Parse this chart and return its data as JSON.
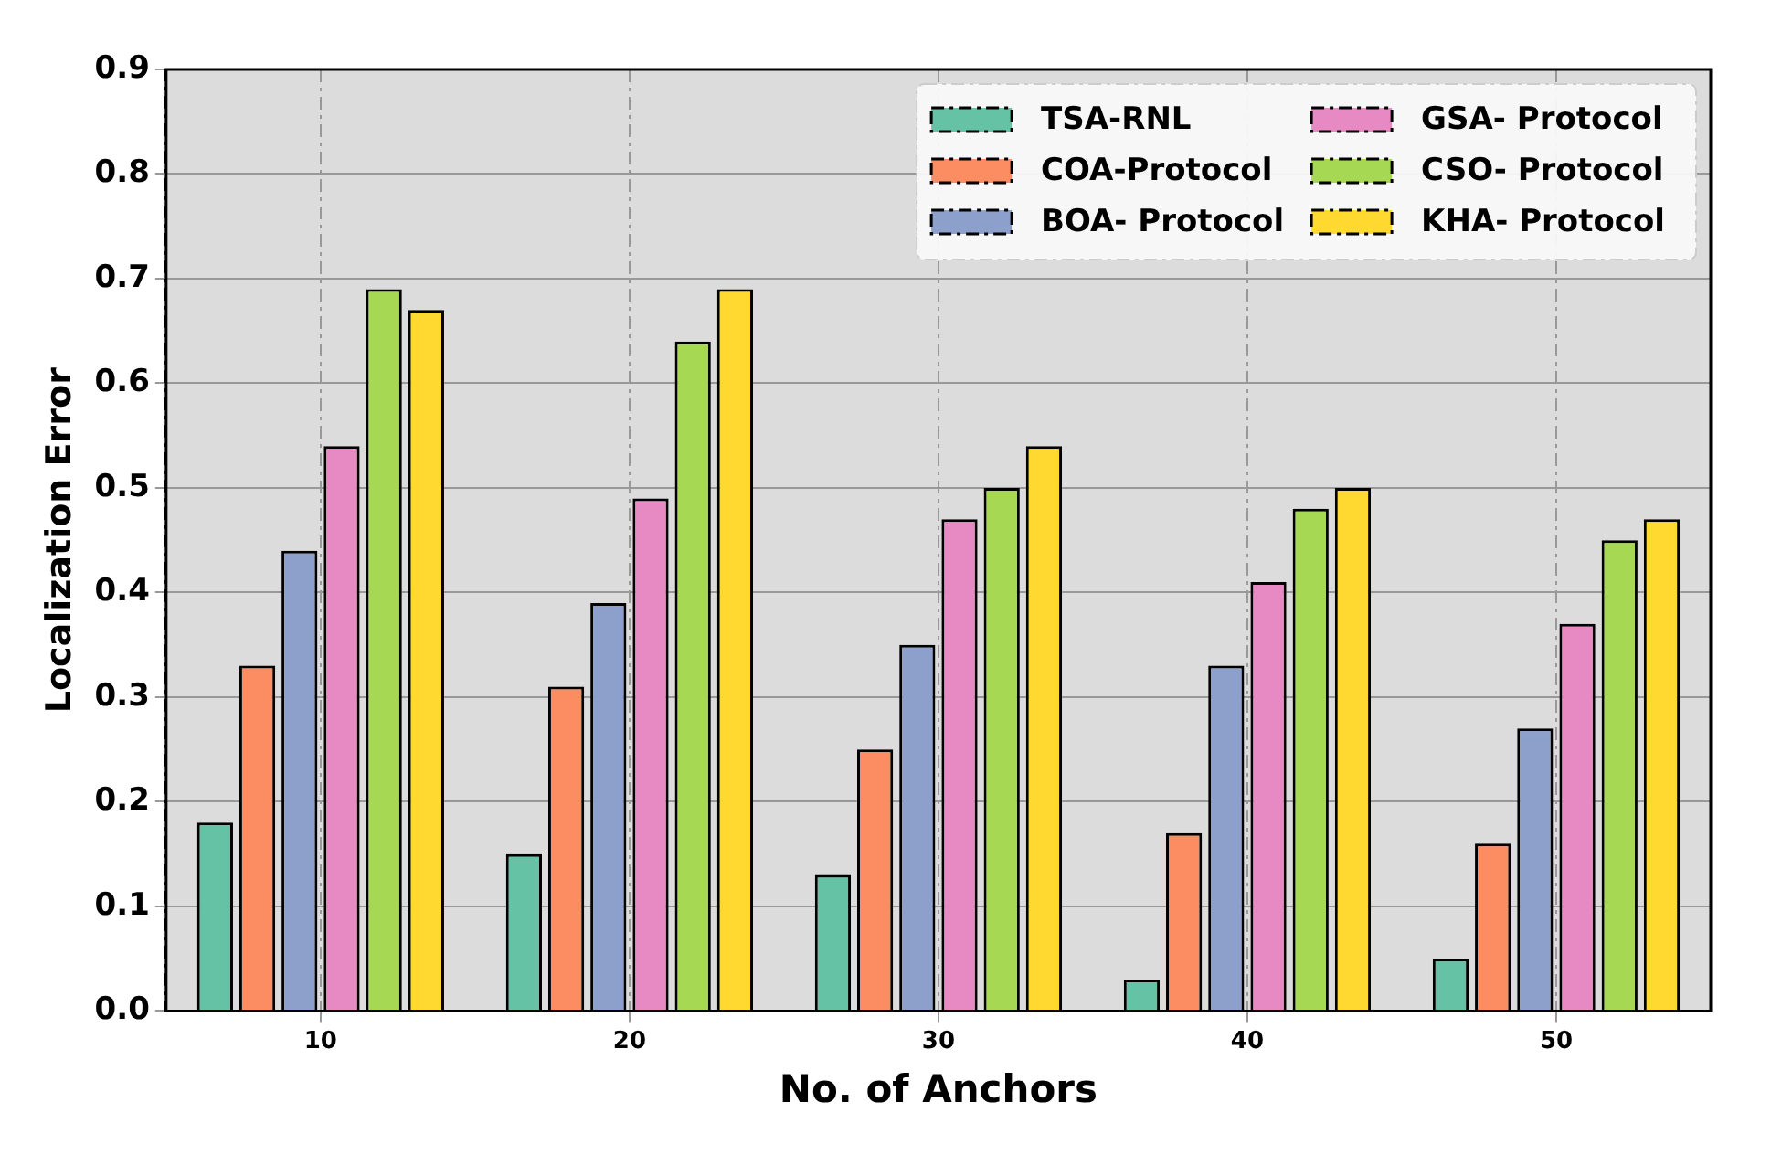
{
  "chart_data": {
    "type": "bar",
    "xlabel": "No. of Anchors",
    "ylabel": "Localization Error",
    "categories": [
      "10",
      "20",
      "30",
      "40",
      "50"
    ],
    "series": [
      {
        "name": "TSA-RNL",
        "color": "#66c2a5",
        "values": [
          0.18,
          0.15,
          0.13,
          0.03,
          0.05
        ]
      },
      {
        "name": "COA-Protocol",
        "color": "#fc8d62",
        "values": [
          0.33,
          0.31,
          0.25,
          0.17,
          0.16
        ]
      },
      {
        "name": "BOA- Protocol",
        "color": "#8da0cb",
        "values": [
          0.44,
          0.39,
          0.35,
          0.33,
          0.27
        ]
      },
      {
        "name": "GSA- Protocol",
        "color": "#e78ac3",
        "values": [
          0.54,
          0.49,
          0.47,
          0.41,
          0.37
        ]
      },
      {
        "name": "CSO- Protocol",
        "color": "#a6d854",
        "values": [
          0.69,
          0.64,
          0.5,
          0.48,
          0.45
        ]
      },
      {
        "name": "KHA- Protocol",
        "color": "#ffd92f",
        "values": [
          0.67,
          0.69,
          0.54,
          0.5,
          0.47
        ]
      }
    ],
    "ylim": [
      0,
      0.9
    ],
    "yticks": [
      {
        "value": 0,
        "label": "0.0"
      },
      0.1,
      0.2,
      0.3,
      0.4,
      0.5,
      0.6,
      0.7,
      0.8,
      0.9
    ],
    "grid": true,
    "legend": "top right"
  }
}
